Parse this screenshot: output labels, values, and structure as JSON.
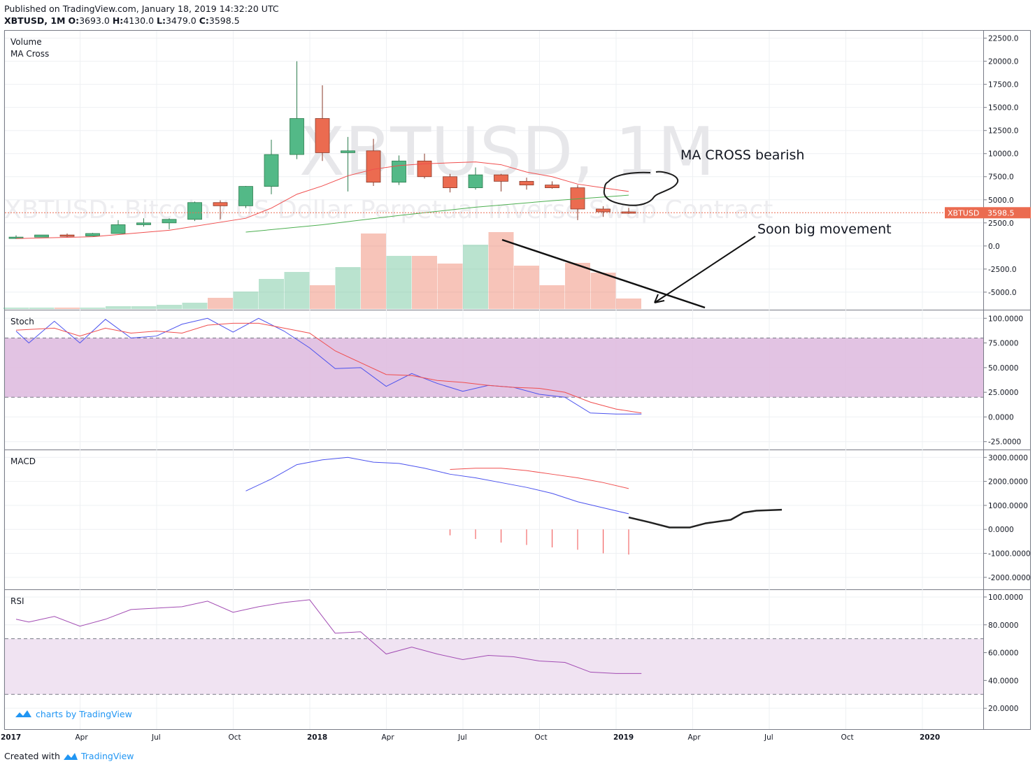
{
  "header": {
    "published": "Published on TradingView.com, January 18, 2019 14:32:20 UTC",
    "symbol": "XBTUSD, 1M",
    "ohlc": {
      "o_label": "O:",
      "o": "3693.0",
      "h_label": "H:",
      "h": "4130.0",
      "l_label": "L:",
      "l": "3479.0",
      "c_label": "C:",
      "c": "3598.5"
    }
  },
  "watermark": {
    "main": "XBTUSD, 1M",
    "sub": "XBTUSD: Bitcoin / US Dollar Perpetual Inverse Swap Contract"
  },
  "price_tag": {
    "symbol": "XBTUSD",
    "value": "3598.5"
  },
  "footer": {
    "created_with": "Created with",
    "brand": "TradingView"
  },
  "branding": {
    "charts_by": "charts by TradingView"
  },
  "annotations": {
    "ma_cross": "MA CROSS bearish",
    "soon": "Soon big movement"
  },
  "colors": {
    "up": "#53b987",
    "down": "#eb6b50",
    "stoch_band": "#dfbde0",
    "rsi_band": "#f0e3f2",
    "ma_short": "#f04e4e",
    "ma_long": "#4caf50",
    "blue": "#4b52ee",
    "red": "#f04e4e",
    "rsi_line": "#a24cb3",
    "brand": "#2196f3"
  },
  "chart_data": [
    {
      "type": "candlestick",
      "pane": "price",
      "labels": [
        "Volume",
        "MA Cross"
      ],
      "x_ticks": [
        "2017",
        "Apr",
        "Jul",
        "Oct",
        "2018",
        "Apr",
        "Jul",
        "Oct",
        "2019",
        "Apr",
        "Jul",
        "Oct",
        "2020"
      ],
      "y_ticks": [
        "22500.0",
        "20000.0",
        "17500.0",
        "15000.0",
        "12500.0",
        "10000.0",
        "7500.0",
        "5000.0",
        "2500.0",
        "0.0",
        "-2500.0",
        "-5000.0"
      ],
      "ylim": [
        -6900,
        23300
      ],
      "candles": [
        {
          "t": "2017-01",
          "o": 960,
          "h": 1150,
          "l": 760,
          "c": 960
        },
        {
          "t": "2017-02",
          "o": 960,
          "h": 1200,
          "l": 930,
          "c": 1190
        },
        {
          "t": "2017-03",
          "o": 1190,
          "h": 1350,
          "l": 940,
          "c": 1080
        },
        {
          "t": "2017-04",
          "o": 1080,
          "h": 1420,
          "l": 1070,
          "c": 1350
        },
        {
          "t": "2017-05",
          "o": 1350,
          "h": 2800,
          "l": 1350,
          "c": 2300
        },
        {
          "t": "2017-06",
          "o": 2300,
          "h": 3000,
          "l": 2100,
          "c": 2500
        },
        {
          "t": "2017-07",
          "o": 2500,
          "h": 3000,
          "l": 1800,
          "c": 2880
        },
        {
          "t": "2017-08",
          "o": 2880,
          "h": 4800,
          "l": 2700,
          "c": 4700
        },
        {
          "t": "2017-09",
          "o": 4700,
          "h": 4950,
          "l": 2900,
          "c": 4350
        },
        {
          "t": "2017-10",
          "o": 4350,
          "h": 6500,
          "l": 4100,
          "c": 6450
        },
        {
          "t": "2017-11",
          "o": 6450,
          "h": 11500,
          "l": 5600,
          "c": 9900
        },
        {
          "t": "2017-12",
          "o": 9900,
          "h": 20000,
          "l": 9400,
          "c": 13800
        },
        {
          "t": "2018-01",
          "o": 13800,
          "h": 17400,
          "l": 9200,
          "c": 10100
        },
        {
          "t": "2018-02",
          "o": 10100,
          "h": 11800,
          "l": 5900,
          "c": 10300
        },
        {
          "t": "2018-03",
          "o": 10300,
          "h": 11600,
          "l": 6500,
          "c": 6900
        },
        {
          "t": "2018-04",
          "o": 6900,
          "h": 9800,
          "l": 6600,
          "c": 9200
        },
        {
          "t": "2018-05",
          "o": 9200,
          "h": 10000,
          "l": 7300,
          "c": 7500
        },
        {
          "t": "2018-06",
          "o": 7500,
          "h": 7800,
          "l": 5800,
          "c": 6300
        },
        {
          "t": "2018-07",
          "o": 6300,
          "h": 8500,
          "l": 6100,
          "c": 7700
        },
        {
          "t": "2018-08",
          "o": 7700,
          "h": 7800,
          "l": 5900,
          "c": 7000
        },
        {
          "t": "2018-09",
          "o": 7000,
          "h": 7400,
          "l": 6100,
          "c": 6600
        },
        {
          "t": "2018-10",
          "o": 6600,
          "h": 7000,
          "l": 6200,
          "c": 6300
        },
        {
          "t": "2018-11",
          "o": 6300,
          "h": 6600,
          "l": 2800,
          "c": 4000
        },
        {
          "t": "2018-12",
          "o": 4000,
          "h": 4300,
          "l": 3150,
          "c": 3700
        },
        {
          "t": "2019-01",
          "o": 3693,
          "h": 4130,
          "l": 3479,
          "c": 3598.5
        }
      ],
      "volume_scale_note": "relative",
      "volume": [
        0.02,
        0.02,
        0.02,
        0.02,
        0.04,
        0.04,
        0.06,
        0.09,
        0.16,
        0.25,
        0.43,
        0.53,
        0.34,
        0.6,
        1.08,
        0.76,
        0.76,
        0.65,
        0.92,
        1.1,
        0.62,
        0.34,
        0.66,
        0.52,
        0.15
      ],
      "ma_short": [
        [
          0,
          800
        ],
        [
          3,
          1000
        ],
        [
          6,
          1700
        ],
        [
          9,
          3000
        ],
        [
          10,
          4100
        ],
        [
          11,
          5600
        ],
        [
          12,
          6500
        ],
        [
          13,
          7600
        ],
        [
          14,
          8300
        ],
        [
          15,
          8700
        ],
        [
          16,
          8900
        ],
        [
          17,
          9000
        ],
        [
          18,
          9100
        ],
        [
          19,
          8800
        ],
        [
          20,
          8000
        ],
        [
          21,
          7500
        ],
        [
          22,
          6700
        ],
        [
          23,
          6300
        ],
        [
          24,
          5900
        ]
      ],
      "ma_long": [
        [
          9,
          1500
        ],
        [
          12,
          2300
        ],
        [
          15,
          3300
        ],
        [
          18,
          4200
        ],
        [
          21,
          4900
        ],
        [
          24,
          5500
        ]
      ]
    },
    {
      "type": "line",
      "pane": "stoch",
      "label": "Stoch",
      "y_ticks": [
        "100.0000",
        "75.0000",
        "50.0000",
        "25.0000",
        "0.0000",
        "-25.0000"
      ],
      "ylim": [
        -33,
        108
      ],
      "band": [
        20,
        80
      ],
      "k": [
        [
          0,
          87
        ],
        [
          0.5,
          75
        ],
        [
          1.5,
          97
        ],
        [
          2.5,
          75
        ],
        [
          3.5,
          99
        ],
        [
          4.5,
          80
        ],
        [
          5.5,
          82
        ],
        [
          6.5,
          94
        ],
        [
          7.5,
          100
        ],
        [
          8.5,
          86
        ],
        [
          9.5,
          100
        ],
        [
          10.5,
          87
        ],
        [
          11.5,
          70
        ],
        [
          12.5,
          49
        ],
        [
          13.5,
          50
        ],
        [
          14.5,
          31
        ],
        [
          15.5,
          44
        ],
        [
          16.5,
          34
        ],
        [
          17.5,
          26
        ],
        [
          18.5,
          32
        ],
        [
          19.5,
          30
        ],
        [
          20.5,
          23
        ],
        [
          21.5,
          20
        ],
        [
          22.5,
          4
        ],
        [
          23.5,
          3
        ],
        [
          24.5,
          3
        ]
      ],
      "d": [
        [
          0,
          88
        ],
        [
          1.5,
          90
        ],
        [
          2.5,
          82
        ],
        [
          3.5,
          90
        ],
        [
          4.5,
          85
        ],
        [
          5.5,
          87
        ],
        [
          6.5,
          85
        ],
        [
          7.5,
          93
        ],
        [
          8.5,
          95
        ],
        [
          9.5,
          95
        ],
        [
          10.5,
          90
        ],
        [
          11.5,
          85
        ],
        [
          12.5,
          67
        ],
        [
          13.5,
          55
        ],
        [
          14.5,
          43
        ],
        [
          15.5,
          42
        ],
        [
          16.5,
          37
        ],
        [
          17.5,
          35
        ],
        [
          18.5,
          32
        ],
        [
          19.5,
          30
        ],
        [
          20.5,
          29
        ],
        [
          21.5,
          25
        ],
        [
          22.5,
          15
        ],
        [
          23.5,
          8
        ],
        [
          24.5,
          4
        ]
      ]
    },
    {
      "type": "line",
      "pane": "macd",
      "label": "MACD",
      "y_ticks": [
        "3000.0000",
        "2000.0000",
        "1000.0000",
        "0.0000",
        "-1000.0000",
        "-2000.0000"
      ],
      "ylim": [
        -2500,
        3300
      ],
      "macd": [
        [
          9,
          1600
        ],
        [
          10,
          2100
        ],
        [
          11,
          2700
        ],
        [
          12,
          2900
        ],
        [
          13,
          3000
        ],
        [
          14,
          2800
        ],
        [
          15,
          2750
        ],
        [
          16,
          2550
        ],
        [
          17,
          2300
        ],
        [
          18,
          2150
        ],
        [
          19,
          1950
        ],
        [
          20,
          1750
        ],
        [
          21,
          1500
        ],
        [
          22,
          1150
        ],
        [
          23,
          900
        ],
        [
          24,
          650
        ]
      ],
      "signal": [
        [
          17,
          2500
        ],
        [
          18,
          2550
        ],
        [
          19,
          2550
        ],
        [
          20,
          2450
        ],
        [
          21,
          2300
        ],
        [
          22,
          2150
        ],
        [
          23,
          1950
        ],
        [
          24,
          1700
        ]
      ],
      "histogram": [
        [
          17,
          -250
        ],
        [
          18,
          -400
        ],
        [
          19,
          -550
        ],
        [
          20,
          -650
        ],
        [
          21,
          -750
        ],
        [
          22,
          -850
        ],
        [
          23,
          -1000
        ],
        [
          24,
          -1050
        ]
      ],
      "projection": [
        [
          24,
          500
        ],
        [
          24.8,
          300
        ],
        [
          25.6,
          80
        ],
        [
          26.4,
          80
        ],
        [
          27,
          250
        ],
        [
          28,
          400
        ],
        [
          28.5,
          700
        ],
        [
          29,
          780
        ],
        [
          30,
          820
        ]
      ]
    },
    {
      "type": "line",
      "pane": "rsi",
      "label": "RSI",
      "y_ticks": [
        "100.0000",
        "80.0000",
        "60.0000",
        "40.0000",
        "20.0000"
      ],
      "ylim": [
        5,
        105
      ],
      "band": [
        30,
        70
      ],
      "rsi": [
        [
          0,
          84
        ],
        [
          0.5,
          82
        ],
        [
          1.5,
          86
        ],
        [
          2.5,
          79
        ],
        [
          3.5,
          84
        ],
        [
          4.5,
          91
        ],
        [
          5.5,
          92
        ],
        [
          6.5,
          93
        ],
        [
          7.5,
          97
        ],
        [
          8.5,
          89
        ],
        [
          9.5,
          93
        ],
        [
          10.5,
          96
        ],
        [
          11.5,
          98
        ],
        [
          12.5,
          74
        ],
        [
          13.5,
          75
        ],
        [
          14.5,
          59
        ],
        [
          15.5,
          64
        ],
        [
          16.5,
          59
        ],
        [
          17.5,
          55
        ],
        [
          18.5,
          58
        ],
        [
          19.5,
          57
        ],
        [
          20.5,
          54
        ],
        [
          21.5,
          53
        ],
        [
          22.5,
          46
        ],
        [
          23.5,
          45
        ],
        [
          24.5,
          45
        ]
      ]
    }
  ]
}
